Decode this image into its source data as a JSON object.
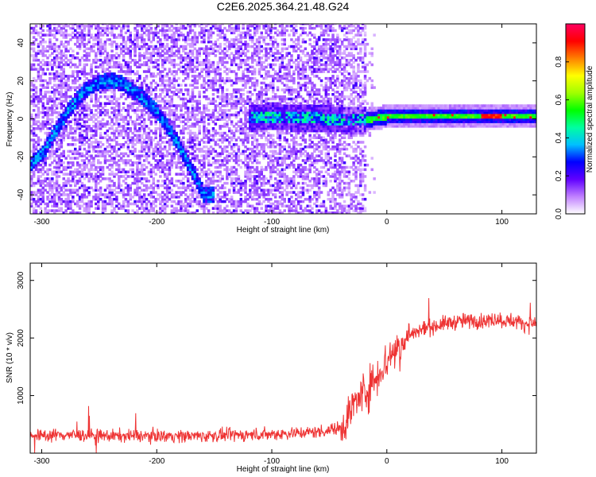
{
  "title": "C2E6.2025.364.21.48.G24",
  "chart_data": [
    {
      "type": "heatmap",
      "xlabel": "Height of straight line (km)",
      "ylabel": "Frequency (Hz)",
      "xlim": [
        -310,
        130
      ],
      "ylim": [
        -50,
        50
      ],
      "xticks": [
        -300,
        -200,
        -100,
        0,
        100
      ],
      "yticks": [
        -40,
        -20,
        0,
        20,
        40
      ],
      "grid": false,
      "colorbar": {
        "label": "Normalized spectral amplitude",
        "range": [
          0,
          1
        ],
        "ticks": [
          0.0,
          0.2,
          0.4,
          0.6,
          0.8
        ],
        "colormap": [
          "#ffffff",
          "#c080ff",
          "#6000ff",
          "#0000ff",
          "#00c0ff",
          "#00ffa0",
          "#00ff00",
          "#a0ff00",
          "#ffff00",
          "#ff8000",
          "#ff0000",
          "#ff0060"
        ]
      },
      "ridges": [
        {
          "x": [
            -310,
            -300,
            -290,
            -280,
            -270,
            -260,
            -250,
            -240,
            -230,
            -220,
            -210,
            -200,
            -190,
            -180,
            -170,
            -160
          ],
          "y": [
            -24,
            -18,
            -8,
            2,
            10,
            16,
            19,
            20,
            18,
            14,
            9,
            3,
            -6,
            -16,
            -28,
            -40
          ]
        },
        {
          "x": [
            -120,
            -100,
            -80,
            -60,
            -40,
            -20,
            -10,
            0,
            20,
            40,
            60,
            80,
            90,
            100,
            130
          ],
          "y": [
            0,
            1,
            0,
            0,
            -1,
            -1,
            0,
            1,
            1,
            1,
            1,
            1,
            1,
            1,
            1
          ]
        }
      ]
    },
    {
      "type": "line",
      "xlabel": "Height of straight line (km)",
      "ylabel": "SNR (10 * v/v)",
      "xlim": [
        -310,
        130
      ],
      "ylim": [
        0,
        3300
      ],
      "xticks": [
        -300,
        -200,
        -100,
        0,
        100
      ],
      "yticks": [
        1000,
        2000,
        3000
      ],
      "grid": false,
      "series": [
        {
          "color": "#ee3333",
          "x": [
            -310,
            -300,
            -280,
            -260,
            -240,
            -220,
            -200,
            -180,
            -160,
            -140,
            -120,
            -100,
            -80,
            -60,
            -50,
            -40,
            -35,
            -30,
            -25,
            -20,
            -15,
            -10,
            -5,
            0,
            5,
            10,
            15,
            20,
            30,
            40,
            50,
            60,
            70,
            80,
            90,
            95,
            100,
            110,
            120,
            130
          ],
          "y": [
            300,
            310,
            320,
            310,
            300,
            300,
            300,
            300,
            300,
            310,
            320,
            330,
            350,
            370,
            400,
            450,
            600,
            800,
            950,
            1050,
            1150,
            1300,
            1450,
            1600,
            1750,
            1850,
            1950,
            2050,
            2150,
            2200,
            2250,
            2280,
            2300,
            2300,
            2300,
            2350,
            2300,
            2300,
            2250,
            2250
          ]
        }
      ]
    }
  ]
}
